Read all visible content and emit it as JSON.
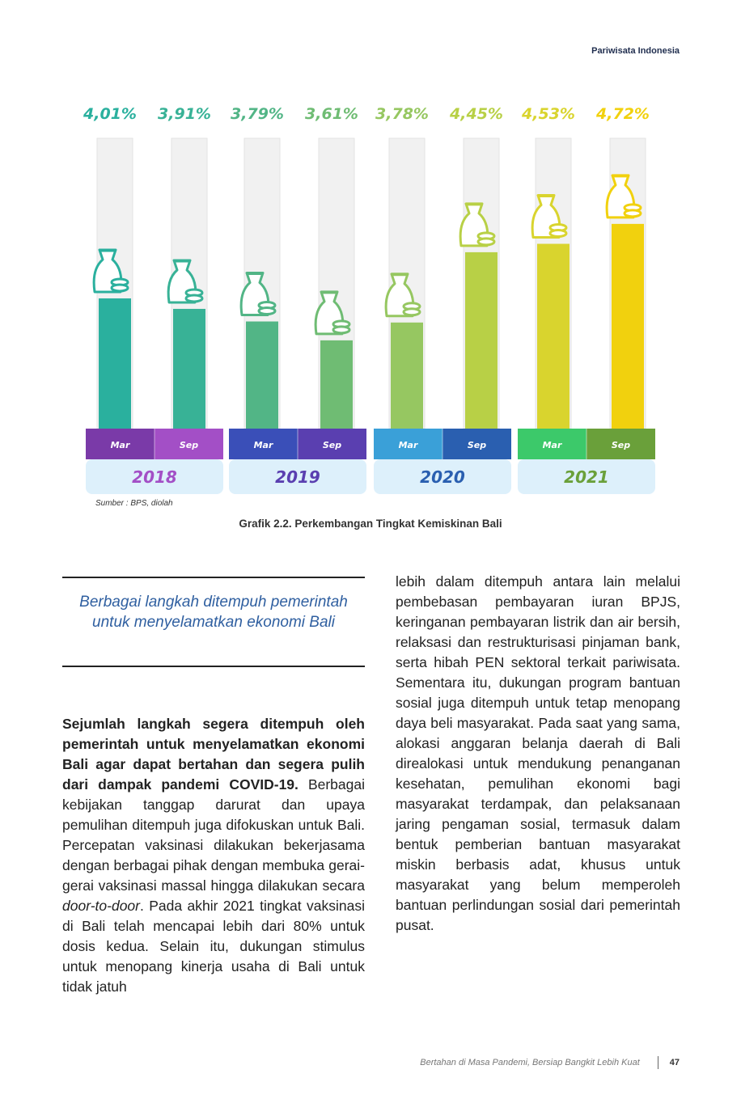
{
  "header": {
    "label": "Pariwisata Indonesia"
  },
  "chart_data": {
    "type": "bar",
    "categories": [
      "Mar 2018",
      "Sep 2018",
      "Mar 2019",
      "Sep 2019",
      "Mar 2020",
      "Sep 2020",
      "Mar 2021",
      "Sep 2021"
    ],
    "values": [
      4.01,
      3.91,
      3.79,
      3.61,
      3.78,
      4.45,
      4.53,
      4.72
    ],
    "value_labels": [
      "4,01%",
      "3,91%",
      "3,79%",
      "3,61%",
      "3,78%",
      "4,45%",
      "4,53%",
      "4,72%"
    ],
    "month_labels": [
      "Mar",
      "Sep",
      "Mar",
      "Sep",
      "Mar",
      "Sep",
      "Mar",
      "Sep"
    ],
    "years": [
      "2018",
      "2019",
      "2020",
      "2021"
    ],
    "bar_colors": [
      "#2ab09e",
      "#38b296",
      "#52b586",
      "#6fbc73",
      "#96c761",
      "#b8d046",
      "#d9d42e",
      "#f1d10e"
    ],
    "label_colors": [
      "#2ab09e",
      "#38b296",
      "#52b586",
      "#6fbc73",
      "#96c761",
      "#b8d046",
      "#d9d42e",
      "#f1d10e"
    ],
    "band_colors": [
      [
        "#7a3aa8",
        "#a34fc6"
      ],
      [
        "#3a4fb8",
        "#5a3fb0"
      ],
      [
        "#3aa0d8",
        "#2a5fb0"
      ],
      [
        "#3cc96a",
        "#6aa03a"
      ]
    ],
    "ylim": [
      0,
      5
    ]
  },
  "source": "Sumber : BPS, diolah",
  "caption": "Grafik 2.2. Perkembangan Tingkat Kemiskinan Bali",
  "pull_quote": "Berbagai langkah ditempuh pemerintah untuk menyelamatkan ekonomi Bali",
  "left_column": {
    "bold_lead": "Sejumlah langkah segera ditempuh oleh pemerintah untuk menyelamatkan ekonomi Bali agar dapat bertahan dan segera pulih dari dampak pandemi COVID-19.",
    "text_1": " Berbagai kebijakan tanggap darurat dan upaya pemulihan ditempuh juga difokuskan untuk Bali. Percepatan vaksinasi dilakukan bekerjasama dengan berbagai pihak dengan membuka gerai-gerai vaksinasi massal hingga dilakukan secara ",
    "italic": "door-to-door",
    "text_2": ". Pada akhir 2021 tingkat vaksinasi di Bali telah mencapai lebih dari 80% untuk dosis kedua. Selain itu, dukungan stimulus untuk menopang kinerja usaha di Bali untuk tidak jatuh"
  },
  "right_column": {
    "text": "lebih dalam ditempuh antara lain melalui pembebasan pembayaran iuran BPJS, keringanan pembayaran listrik dan air bersih, relaksasi dan restrukturisasi pinjaman bank, serta hibah PEN sektoral terkait pariwisata. Sementara itu, dukungan program bantuan sosial juga ditempuh untuk tetap menopang daya beli masyarakat. Pada saat yang sama, alokasi anggaran belanja daerah di Bali direalokasi untuk mendukung penanganan kesehatan, pemulihan ekonomi bagi masyarakat terdampak, dan pelaksanaan jaring pengaman sosial, termasuk dalam bentuk pemberian bantuan masyarakat miskin berbasis adat, khusus untuk masyarakat yang belum memperoleh bantuan perlindungan sosial dari pemerintah pusat."
  },
  "footer": {
    "title": "Bertahan di Masa Pandemi, Bersiap Bangkit Lebih Kuat",
    "page_number": "47"
  }
}
